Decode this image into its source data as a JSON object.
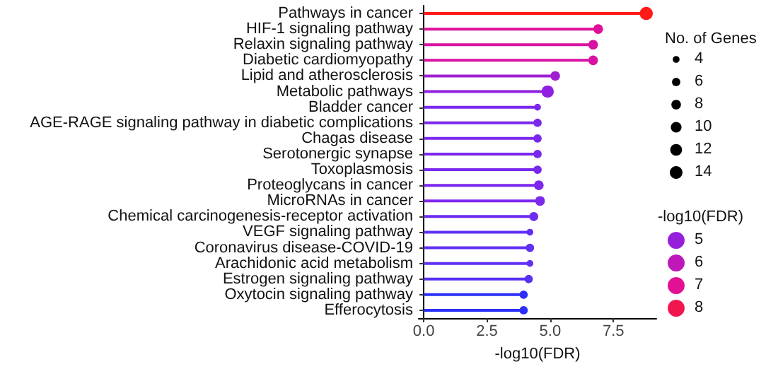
{
  "chart_data": {
    "type": "lollipop",
    "orientation": "horizontal",
    "xlabel": "-log10(FDR)",
    "legend_title": "No. of Genes",
    "clabel": "-log10(FDR)",
    "categories": [
      "Pathways in cancer",
      "HIF-1 signaling pathway",
      "Relaxin signaling pathway",
      "Diabetic cardiomyopathy",
      "Lipid and atherosclerosis",
      "Metabolic pathways",
      "Bladder cancer",
      "AGE-RAGE signaling pathway in diabetic complications",
      "Chagas disease",
      "Serotonergic synapse",
      "Toxoplasmosis",
      "Proteoglycans in cancer",
      "MicroRNAs in cancer",
      "Chemical carcinogenesis-receptor activation",
      "VEGF signaling pathway",
      "Coronavirus disease-COVID-19",
      "Arachidonic acid metabolism",
      "Estrogen signaling pathway",
      "Oxytocin signaling pathway",
      "Efferocytosis"
    ],
    "values": [
      8.8,
      6.9,
      6.7,
      6.7,
      5.2,
      4.9,
      4.5,
      4.5,
      4.5,
      4.5,
      4.5,
      4.55,
      4.6,
      4.35,
      4.2,
      4.2,
      4.2,
      4.15,
      3.95,
      3.95
    ],
    "sizes": [
      15,
      8,
      8,
      8,
      8,
      13,
      4,
      6,
      6,
      6,
      6,
      8,
      8,
      7,
      4,
      6,
      4,
      6,
      6,
      6
    ],
    "colors": [
      "#ff1a1a",
      "#e0109a",
      "#d812a2",
      "#d812a2",
      "#a01ed2",
      "#9020e0",
      "#7a28ee",
      "#7a28ee",
      "#7a28ee",
      "#7a28ee",
      "#7a28ee",
      "#7c28ee",
      "#7e28ec",
      "#6c2cf0",
      "#6030f4",
      "#6030f4",
      "#6030f4",
      "#5a30f4",
      "#2a30f8",
      "#2a30f8"
    ],
    "size_legend": [
      4,
      6,
      8,
      10,
      12,
      14
    ],
    "cticks": [
      5,
      6,
      7,
      8
    ],
    "xlim": [
      -0.2,
      9.2
    ],
    "xticks": [
      {
        "value": 0,
        "label": "0.0"
      },
      {
        "value": 2.5,
        "label": "2.5"
      },
      {
        "value": 5,
        "label": "5.0"
      },
      {
        "value": 7.5,
        "label": "7.5"
      }
    ]
  }
}
